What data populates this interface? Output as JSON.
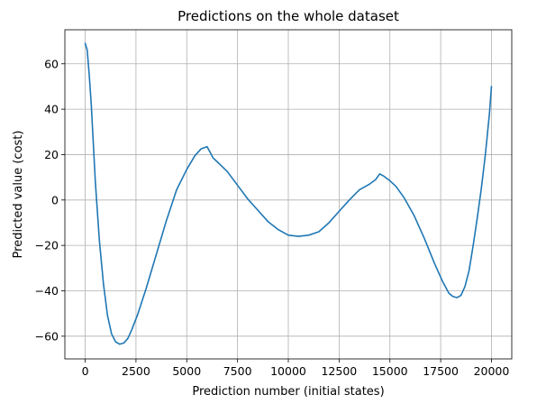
{
  "chart_data": {
    "type": "line",
    "title": "Predictions on the whole dataset",
    "xlabel": "Prediction number (initial states)",
    "ylabel": "Predicted value (cost)",
    "xlim": [
      -1000,
      21000
    ],
    "ylim": [
      -70,
      75
    ],
    "xticks": [
      0,
      2500,
      5000,
      7500,
      10000,
      12500,
      15000,
      17500,
      20000
    ],
    "yticks": [
      -60,
      -40,
      -20,
      0,
      20,
      40,
      60
    ],
    "grid": true,
    "series": [
      {
        "color": "#1f77b4",
        "x": [
          0,
          100,
          200,
          300,
          400,
          500,
          700,
          900,
          1100,
          1300,
          1500,
          1700,
          1900,
          2100,
          2300,
          2600,
          3000,
          3500,
          4000,
          4500,
          5000,
          5400,
          5700,
          6000,
          6150,
          6300,
          6600,
          7000,
          7500,
          8000,
          8500,
          9000,
          9500,
          10000,
          10500,
          11000,
          11500,
          12000,
          12500,
          13000,
          13500,
          14000,
          14300,
          14500,
          14700,
          15000,
          15300,
          15700,
          16200,
          16700,
          17200,
          17600,
          17900,
          18100,
          18300,
          18500,
          18700,
          18900,
          19100,
          19300,
          19500,
          19700,
          19900,
          20000
        ],
        "values": [
          69,
          66,
          55,
          42,
          25,
          8,
          -18,
          -37,
          -51,
          -59,
          -62.5,
          -63.5,
          -63,
          -61,
          -57,
          -50,
          -39,
          -24,
          -9,
          4.5,
          13.5,
          19.5,
          22.5,
          23.5,
          21,
          18.5,
          16,
          12.5,
          6.5,
          0.5,
          -4.5,
          -9.5,
          -13,
          -15.5,
          -16,
          -15.5,
          -14,
          -10,
          -5,
          0,
          4.5,
          7,
          9,
          11.5,
          10.5,
          8.5,
          6,
          1,
          -7,
          -17,
          -28,
          -36,
          -41,
          -42.5,
          -43,
          -42,
          -38,
          -31,
          -20,
          -8,
          5,
          20,
          38,
          50
        ]
      }
    ]
  }
}
